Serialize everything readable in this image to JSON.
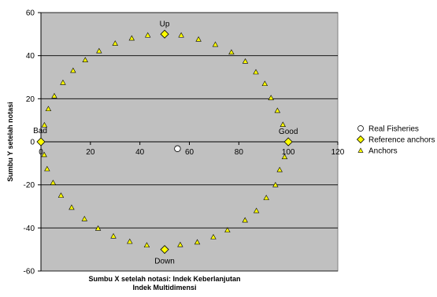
{
  "chart_data": {
    "type": "scatter",
    "xlabel": "Sumbu X setelah notasi: Indek Keberlanjutan\nIndek Multidimensi",
    "ylabel": "Sumbu Y setelah notasi",
    "xlim": [
      0,
      120
    ],
    "ylim": [
      -60,
      60
    ],
    "xticks": [
      0,
      20,
      40,
      60,
      80,
      100,
      120
    ],
    "yticks": [
      -60,
      -40,
      -20,
      0,
      20,
      40,
      60
    ],
    "grid": "horizontal",
    "legend_position": "right",
    "plot_background": "#c0c0c0",
    "series": [
      {
        "name": "Real Fisheries",
        "marker": "circle",
        "color": "#ffffff",
        "points": [
          [
            55.2,
            -3.2
          ]
        ]
      },
      {
        "name": "Reference anchors",
        "marker": "diamond",
        "color": "#ffff00",
        "points": [
          [
            50,
            50
          ],
          [
            0,
            0
          ],
          [
            100,
            0
          ],
          [
            50,
            -50
          ]
        ]
      },
      {
        "name": "Anchors",
        "marker": "triangle",
        "color": "#ffff00",
        "points": [
          [
            56.7,
            49.5
          ],
          [
            63.7,
            47.6
          ],
          [
            70.5,
            45.2
          ],
          [
            77.0,
            41.6
          ],
          [
            82.6,
            37.4
          ],
          [
            86.9,
            32.4
          ],
          [
            90.5,
            27.0
          ],
          [
            93.0,
            20.4
          ],
          [
            95.6,
            14.5
          ],
          [
            97.8,
            8.0
          ],
          [
            98.5,
            -7.0
          ],
          [
            96.5,
            -13.0
          ],
          [
            94.8,
            -20.0
          ],
          [
            91.1,
            -26.0
          ],
          [
            87.1,
            -32.0
          ],
          [
            82.5,
            -36.4
          ],
          [
            75.4,
            -41.0
          ],
          [
            69.7,
            -44.2
          ],
          [
            63.2,
            -46.6
          ],
          [
            56.3,
            -47.8
          ],
          [
            42.8,
            -48.0
          ],
          [
            35.9,
            -46.3
          ],
          [
            29.3,
            -43.8
          ],
          [
            23.1,
            -40.2
          ],
          [
            17.6,
            -35.8
          ],
          [
            12.4,
            -30.5
          ],
          [
            8.1,
            -24.9
          ],
          [
            4.9,
            -19.0
          ],
          [
            2.5,
            -12.6
          ],
          [
            1.3,
            -6.0
          ],
          [
            1.4,
            7.8
          ],
          [
            3.0,
            15.3
          ],
          [
            5.4,
            21.3
          ],
          [
            8.9,
            27.5
          ],
          [
            13.0,
            33.1
          ],
          [
            17.9,
            38.0
          ],
          [
            23.5,
            42.2
          ],
          [
            30.0,
            45.7
          ],
          [
            36.7,
            48.1
          ],
          [
            43.2,
            49.5
          ]
        ]
      }
    ],
    "annotations": [
      {
        "text": "Up",
        "x": 50,
        "y": 50,
        "position": "above"
      },
      {
        "text": "Bad",
        "x": 0,
        "y": 0,
        "position": "above-left"
      },
      {
        "text": "Good",
        "x": 100,
        "y": 0,
        "position": "above"
      },
      {
        "text": "Down",
        "x": 50,
        "y": -50,
        "position": "below"
      }
    ]
  }
}
